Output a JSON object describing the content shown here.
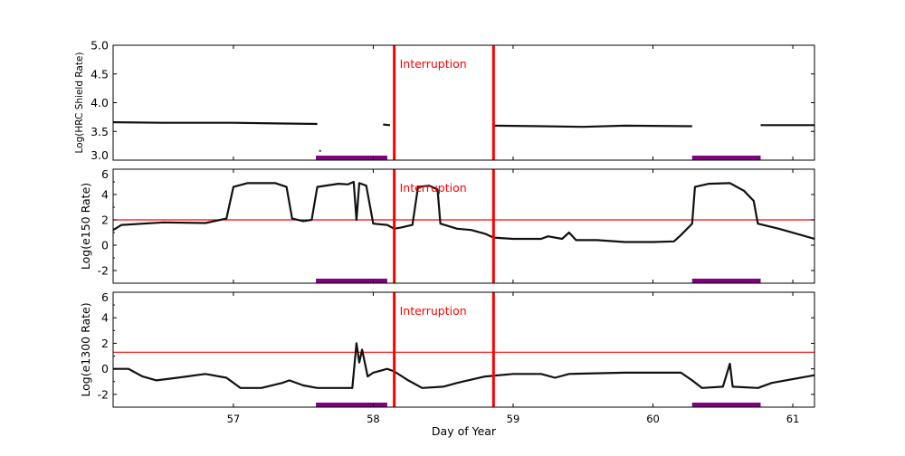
{
  "chart_data": [
    {
      "type": "line",
      "ylabel": "Log(HRC Shield Rate)",
      "xlim": [
        56.14,
        61.155
      ],
      "ylim": [
        3.0,
        5.0
      ],
      "yticks": [
        "3.0",
        "3.5",
        "4.0",
        "4.5",
        "5.0"
      ],
      "annotation": "Interruption",
      "interruption_days": [
        58.15,
        58.86
      ],
      "purple_bars": [
        [
          57.59,
          58.1
        ],
        [
          60.28,
          60.77
        ]
      ],
      "series": [
        {
          "x": [
            56.14,
            56.5,
            57.0,
            57.3,
            57.6
          ],
          "y": [
            3.66,
            3.65,
            3.65,
            3.64,
            3.63
          ]
        },
        {
          "x": [
            58.07,
            58.12
          ],
          "y": [
            3.62,
            3.61
          ]
        },
        {
          "x": [
            58.86,
            59.2,
            59.5,
            59.8,
            60.28
          ],
          "y": [
            3.6,
            3.59,
            3.58,
            3.6,
            3.59
          ]
        },
        {
          "x": [
            60.77,
            61.0,
            61.155
          ],
          "y": [
            3.61,
            3.61,
            3.61
          ]
        }
      ],
      "points": [
        {
          "x": 57.62,
          "y": 3.16
        }
      ]
    },
    {
      "type": "line",
      "ylabel": "Log(e150  Rate)",
      "xlim": [
        56.14,
        61.155
      ],
      "ylim": [
        -3,
        6
      ],
      "yticks": [
        "-2",
        "0",
        "2",
        "4",
        "6"
      ],
      "threshold": 2.0,
      "annotation": "Interruption",
      "interruption_days": [
        58.15,
        58.86
      ],
      "purple_bars": [
        [
          57.59,
          58.1
        ],
        [
          60.28,
          60.77
        ]
      ],
      "series": [
        {
          "x": [
            56.14,
            56.2,
            56.5,
            56.8,
            56.95,
            57.0,
            57.1,
            57.3,
            57.38,
            57.42,
            57.5,
            57.56,
            57.6,
            57.75,
            57.82,
            57.86,
            57.88,
            57.9,
            57.95,
            58.0,
            58.1,
            58.15,
            58.2,
            58.28,
            58.32,
            58.4,
            58.46,
            58.48,
            58.6,
            58.7,
            58.8,
            58.86,
            59.0,
            59.2,
            59.25,
            59.35,
            59.4,
            59.45,
            59.6,
            59.8,
            60.0,
            60.15,
            60.2,
            60.28,
            60.3,
            60.4,
            60.55,
            60.65,
            60.72,
            60.75,
            60.9,
            61.155
          ],
          "y": [
            1.2,
            1.6,
            1.8,
            1.75,
            2.1,
            4.6,
            4.9,
            4.9,
            4.6,
            2.1,
            1.9,
            2.0,
            4.6,
            4.85,
            4.8,
            5.0,
            2.0,
            4.9,
            4.7,
            1.7,
            1.6,
            1.3,
            1.4,
            1.6,
            4.6,
            4.7,
            4.4,
            1.7,
            1.3,
            1.2,
            0.9,
            0.6,
            0.5,
            0.5,
            0.7,
            0.5,
            1.0,
            0.4,
            0.4,
            0.25,
            0.25,
            0.3,
            0.8,
            1.7,
            4.6,
            4.85,
            4.9,
            4.3,
            3.5,
            1.7,
            1.3,
            0.5
          ]
        }
      ]
    },
    {
      "type": "line",
      "ylabel": "Log(e1300 Rate)",
      "xlabel": "Day of Year",
      "xlim": [
        56.14,
        61.155
      ],
      "ylim": [
        -3,
        6
      ],
      "xticks": [
        "57",
        "58",
        "59",
        "60",
        "61"
      ],
      "yticks": [
        "-2",
        "0",
        "2",
        "4",
        "6"
      ],
      "threshold": 1.3,
      "annotation": "Interruption",
      "interruption_days": [
        58.15,
        58.86
      ],
      "purple_bars": [
        [
          57.59,
          58.1
        ],
        [
          60.28,
          60.77
        ]
      ],
      "series": [
        {
          "x": [
            56.14,
            56.25,
            56.35,
            56.45,
            56.6,
            56.8,
            56.95,
            57.05,
            57.2,
            57.35,
            57.4,
            57.5,
            57.6,
            57.85,
            57.88,
            57.9,
            57.92,
            57.96,
            58.0,
            58.1,
            58.15,
            58.25,
            58.35,
            58.5,
            58.6,
            58.8,
            59.0,
            59.2,
            59.3,
            59.4,
            59.8,
            60.2,
            60.28,
            60.35,
            60.5,
            60.55,
            60.57,
            60.75,
            60.85,
            61.155
          ],
          "y": [
            0.0,
            0.0,
            -0.6,
            -0.9,
            -0.7,
            -0.4,
            -0.7,
            -1.5,
            -1.5,
            -1.1,
            -0.9,
            -1.3,
            -1.5,
            -1.5,
            2.0,
            0.5,
            1.5,
            -0.6,
            -0.3,
            0.0,
            -0.2,
            -0.9,
            -1.5,
            -1.4,
            -1.1,
            -0.6,
            -0.4,
            -0.4,
            -0.7,
            -0.4,
            -0.3,
            -0.3,
            -0.9,
            -1.5,
            -1.4,
            0.4,
            -1.4,
            -1.5,
            -1.1,
            -0.5
          ]
        }
      ]
    }
  ],
  "colors": {
    "interruption": "#ff0000",
    "bar": "#800080",
    "data": "#111111"
  }
}
